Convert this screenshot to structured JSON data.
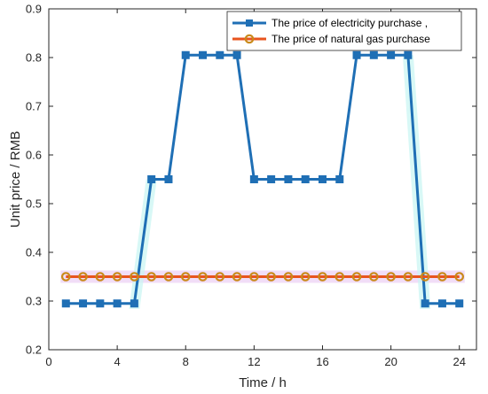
{
  "chart_data": {
    "type": "line",
    "xlabel": "Time / h",
    "ylabel": "Unit price / RMB",
    "xlim": [
      0,
      25
    ],
    "ylim": [
      0.2,
      0.9
    ],
    "xticks": [
      0,
      4,
      8,
      12,
      16,
      20,
      24
    ],
    "yticks": [
      0.2,
      0.3,
      0.4,
      0.5,
      0.6,
      0.7,
      0.8,
      0.9
    ],
    "grid": false,
    "legend_position": "top-right",
    "series": [
      {
        "name": "The price of electricity purchase ,",
        "color": "#1f6fb5",
        "marker": "square",
        "x": [
          1,
          2,
          3,
          4,
          5,
          6,
          7,
          8,
          9,
          10,
          11,
          12,
          13,
          14,
          15,
          16,
          17,
          18,
          19,
          20,
          21,
          22,
          23,
          24
        ],
        "values": [
          0.295,
          0.295,
          0.295,
          0.295,
          0.295,
          0.55,
          0.55,
          0.805,
          0.805,
          0.805,
          0.805,
          0.55,
          0.55,
          0.55,
          0.55,
          0.55,
          0.55,
          0.805,
          0.805,
          0.805,
          0.805,
          0.295,
          0.295,
          0.295
        ]
      },
      {
        "name": "The price of natural gas purchase",
        "color": "#e8541e",
        "marker": "circle",
        "marker_edge": "#c98a1a",
        "x": [
          1,
          2,
          3,
          4,
          5,
          6,
          7,
          8,
          9,
          10,
          11,
          12,
          13,
          14,
          15,
          16,
          17,
          18,
          19,
          20,
          21,
          22,
          23,
          24
        ],
        "values": [
          0.35,
          0.35,
          0.35,
          0.35,
          0.35,
          0.35,
          0.35,
          0.35,
          0.35,
          0.35,
          0.35,
          0.35,
          0.35,
          0.35,
          0.35,
          0.35,
          0.35,
          0.35,
          0.35,
          0.35,
          0.35,
          0.35,
          0.35,
          0.35
        ]
      }
    ]
  }
}
